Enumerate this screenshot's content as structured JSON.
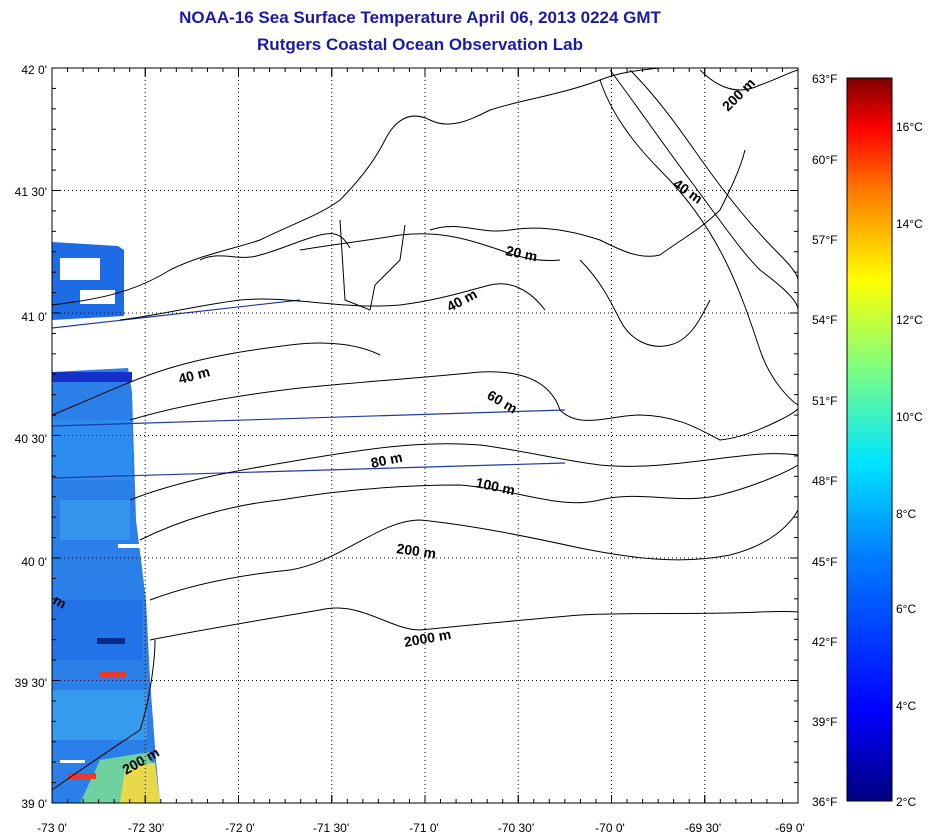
{
  "title": "NOAA-16 Sea Surface Temperature April 06, 2013 0224 GMT",
  "subtitle": "Rutgers Coastal Ocean Observation Lab",
  "lat_labels": [
    "42 0'",
    "41 30'",
    "41 0'",
    "40 30'",
    "40 0'",
    "39 30'",
    "39 0'"
  ],
  "lon_labels": [
    "-73 0'",
    "-72 30'",
    "-72 0'",
    "-71 30'",
    "-71 0'",
    "-70 30'",
    "-70 0'",
    "-69 30'",
    "-69 0'"
  ],
  "fahrenheit_labels": [
    "63°F",
    "60°F",
    "57°F",
    "54°F",
    "51°F",
    "48°F",
    "45°F",
    "42°F",
    "39°F",
    "36°F"
  ],
  "celsius_labels": [
    "16°C",
    "14°C",
    "12°C",
    "10°C",
    "8°C",
    "6°C",
    "4°C",
    "2°C"
  ],
  "depth_labels": {
    "d200_ne": "200 m",
    "d40_ne": "40 m",
    "d20": "20 m",
    "d40_mid": "40 m",
    "d40_w": "40 m",
    "d60": "60 m",
    "d80": "80 m",
    "d100": "100 m",
    "d200": "200 m",
    "d2000": "2000 m",
    "d200_sw": "200 m",
    "dm_edge": "m"
  },
  "colors": {
    "title": "#1a1aa6",
    "track": "#1f3a9e",
    "colorbar_stops": [
      "#00007f",
      "#0000ff",
      "#007fff",
      "#00ffff",
      "#7fff7f",
      "#ffff00",
      "#ff7f00",
      "#ff0000",
      "#7f0000"
    ]
  }
}
